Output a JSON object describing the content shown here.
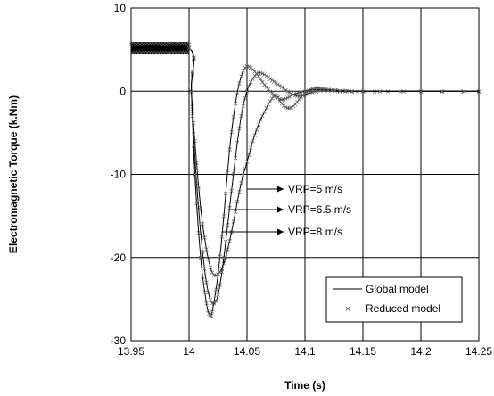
{
  "chart_data": {
    "type": "line",
    "title": "",
    "xlabel": "Time (s)",
    "ylabel": "Electromagnetic Torque (k.Nm)",
    "xlim": [
      13.95,
      14.25
    ],
    "ylim": [
      -30,
      10
    ],
    "x_ticks": [
      "13.95",
      "14",
      "14.05",
      "14.1",
      "14.15",
      "14.2",
      "14.25"
    ],
    "y_ticks": [
      "10",
      "0",
      "-10",
      "-20",
      "-30"
    ],
    "grid": true,
    "legend_position": "bottom-right",
    "legend": [
      {
        "label": "Global model",
        "marker": "line"
      },
      {
        "label": "Reduced model",
        "marker": "x"
      }
    ],
    "annotations": [
      {
        "text": "VRP=5 m/s",
        "points_to": [
          14.05,
          -11.8
        ]
      },
      {
        "text": "VRP=6.5 m/s",
        "points_to": [
          14.036,
          -14.5
        ]
      },
      {
        "text": "VRP=8 m/s",
        "points_to": [
          14.028,
          -16.8
        ]
      }
    ],
    "series": [
      {
        "name": "VRP=5 m/s",
        "x": [
          13.95,
          14.0,
          14.002,
          14.005,
          14.01,
          14.015,
          14.02,
          14.025,
          14.03,
          14.035,
          14.04,
          14.045,
          14.05,
          14.055,
          14.06,
          14.065,
          14.07,
          14.075,
          14.08,
          14.085,
          14.09,
          14.095,
          14.1,
          14.105,
          14.11,
          14.115,
          14.12,
          14.13,
          14.14,
          14.16,
          14.2,
          14.25
        ],
        "y": [
          5.2,
          5.2,
          0,
          -6,
          -14,
          -19,
          -21.8,
          -22.0,
          -20.7,
          -18,
          -14.5,
          -11,
          -8.5,
          -6,
          -4,
          -2.5,
          -1.2,
          -0.5,
          -1.5,
          -2,
          -1.8,
          -1,
          -0.2,
          0.2,
          0.4,
          0.3,
          0.2,
          0.1,
          0,
          0,
          0,
          0
        ]
      },
      {
        "name": "VRP=6.5 m/s",
        "x": [
          13.95,
          14.0,
          14.002,
          14.005,
          14.01,
          14.015,
          14.02,
          14.025,
          14.03,
          14.035,
          14.04,
          14.045,
          14.05,
          14.055,
          14.06,
          14.065,
          14.07,
          14.075,
          14.08,
          14.085,
          14.09,
          14.095,
          14.1,
          14.11,
          14.12,
          14.13,
          14.15,
          14.2,
          14.25
        ],
        "y": [
          5.2,
          5.2,
          0,
          -8,
          -17,
          -23,
          -25.5,
          -24.5,
          -20,
          -14,
          -8,
          -3,
          0,
          1.5,
          2.2,
          2.0,
          1.5,
          1.0,
          0.5,
          0,
          -0.4,
          -0.6,
          -0.4,
          0,
          0.2,
          0.1,
          0,
          0,
          0
        ]
      },
      {
        "name": "VRP=8 m/s",
        "x": [
          13.95,
          14.0,
          14.002,
          14.005,
          14.01,
          14.015,
          14.018,
          14.02,
          14.025,
          14.03,
          14.035,
          14.04,
          14.045,
          14.05,
          14.055,
          14.06,
          14.065,
          14.07,
          14.075,
          14.08,
          14.085,
          14.09,
          14.1,
          14.11,
          14.12,
          14.13,
          14.15,
          14.2,
          14.25
        ],
        "y": [
          5.2,
          5.2,
          0,
          -10,
          -20,
          -25.5,
          -26.9,
          -26.5,
          -22,
          -15,
          -7,
          -1.5,
          1.8,
          3.0,
          2.6,
          1.8,
          0.8,
          0,
          -0.6,
          -1,
          -0.8,
          -0.4,
          0,
          0.2,
          0.1,
          0,
          0,
          0,
          0
        ]
      }
    ]
  }
}
